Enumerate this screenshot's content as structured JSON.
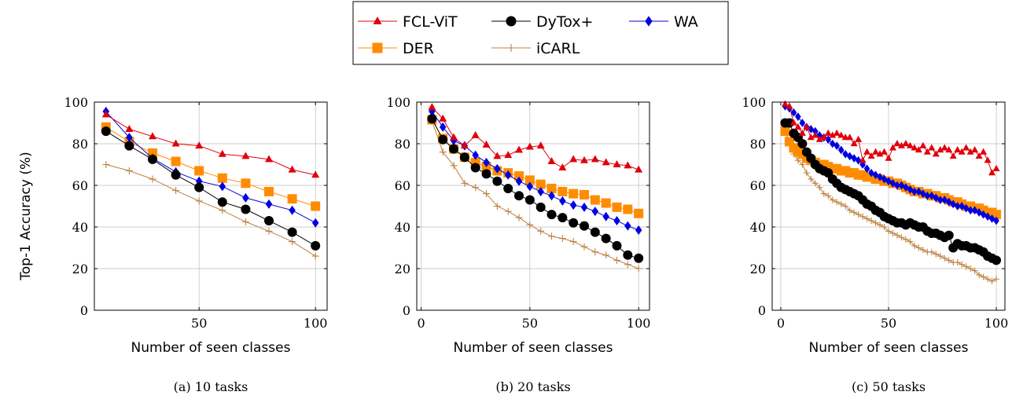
{
  "legend": {
    "placement": "top-center",
    "columns": 3,
    "entries": [
      "FCL-ViT",
      "DyTox+",
      "WA",
      "DER",
      "iCARL"
    ]
  },
  "series_styles": [
    {
      "name": "FCL-ViT",
      "color": "#e0000c",
      "marker": "triangle"
    },
    {
      "name": "DyTox+",
      "color": "#000000",
      "marker": "circle"
    },
    {
      "name": "WA",
      "color": "#0000e0",
      "marker": "diamond"
    },
    {
      "name": "DER",
      "color": "#ff8c00",
      "marker": "square"
    },
    {
      "name": "iCARL",
      "color": "#bf8040",
      "marker": "plus"
    }
  ],
  "chart_data": [
    {
      "type": "line",
      "caption": "(a) 10 tasks",
      "xlabel": "Number of seen classes",
      "ylabel": "Top-1 Accuracy (%)",
      "xlim": [
        5,
        105
      ],
      "ylim": [
        0,
        100
      ],
      "xticks": [
        50,
        100
      ],
      "yticks": [
        0,
        20,
        40,
        60,
        80,
        100
      ],
      "grid": true,
      "x": [
        10,
        20,
        30,
        40,
        50,
        60,
        70,
        80,
        90,
        100
      ],
      "series": [
        {
          "name": "FCL-ViT",
          "values": [
            94,
            87,
            83.5,
            80,
            79,
            75,
            74,
            72.5,
            67.5,
            65
          ]
        },
        {
          "name": "DyTox+",
          "values": [
            86,
            79,
            72.5,
            65,
            59,
            52,
            48.5,
            43,
            37.5,
            31
          ]
        },
        {
          "name": "WA",
          "values": [
            95.5,
            83,
            73,
            66.5,
            62,
            59.5,
            54,
            51,
            48,
            42
          ]
        },
        {
          "name": "DER",
          "values": [
            88,
            81,
            75.5,
            71.5,
            67,
            63.5,
            61,
            57,
            53.5,
            50
          ]
        },
        {
          "name": "iCARL",
          "values": [
            70,
            67,
            63,
            57.5,
            52.5,
            48,
            42.5,
            38,
            33,
            26
          ]
        }
      ]
    },
    {
      "type": "line",
      "caption": "(b) 20 tasks",
      "xlabel": "Number of seen classes",
      "ylabel": "",
      "xlim": [
        -2,
        105
      ],
      "ylim": [
        0,
        100
      ],
      "xticks": [
        0,
        50,
        100
      ],
      "yticks": [
        0,
        20,
        40,
        60,
        80,
        100
      ],
      "grid": true,
      "x": [
        5,
        10,
        15,
        20,
        25,
        30,
        35,
        40,
        45,
        50,
        55,
        60,
        65,
        70,
        75,
        80,
        85,
        90,
        95,
        100
      ],
      "series": [
        {
          "name": "FCL-ViT",
          "values": [
            97.5,
            92,
            83,
            79,
            84,
            79.5,
            74,
            74.5,
            77,
            78.5,
            79,
            71.5,
            68.5,
            72.5,
            72,
            72.5,
            71,
            70,
            69.5,
            67.5
          ]
        },
        {
          "name": "DyTox+",
          "values": [
            92,
            82,
            77.5,
            73.5,
            68.5,
            65.5,
            62,
            58.5,
            55,
            53,
            49.5,
            46,
            44.5,
            42,
            40.5,
            37.5,
            34.5,
            31,
            26.5,
            25
          ]
        },
        {
          "name": "WA",
          "values": [
            95.5,
            88,
            81.5,
            79,
            74.5,
            71,
            68,
            65,
            62,
            59.5,
            57,
            55,
            52.5,
            50.5,
            49.5,
            47.5,
            45,
            43,
            40.5,
            38.5
          ]
        },
        {
          "name": "DER",
          "values": [
            91.5,
            82.5,
            77.5,
            73.5,
            71,
            69,
            67,
            66,
            64.5,
            62.5,
            60.5,
            58.5,
            57,
            56,
            55.5,
            53,
            51.5,
            49.5,
            48.5,
            46.5
          ]
        },
        {
          "name": "iCARL",
          "values": [
            91,
            76,
            69.5,
            61,
            59,
            56,
            50,
            47.5,
            44.5,
            41,
            38,
            35.5,
            34.5,
            33,
            30.5,
            28,
            26.5,
            24,
            22,
            20
          ]
        }
      ]
    },
    {
      "type": "line",
      "caption": "(c) 50 tasks",
      "xlabel": "Number of seen classes",
      "ylabel": "",
      "xlim": [
        -4,
        104
      ],
      "ylim": [
        0,
        100
      ],
      "xticks": [
        0,
        50,
        100
      ],
      "yticks": [
        0,
        20,
        40,
        60,
        80,
        100
      ],
      "grid": true,
      "x": [
        2,
        4,
        6,
        8,
        10,
        12,
        14,
        16,
        18,
        20,
        22,
        24,
        26,
        28,
        30,
        32,
        34,
        36,
        38,
        40,
        42,
        44,
        46,
        48,
        50,
        52,
        54,
        56,
        58,
        60,
        62,
        64,
        66,
        68,
        70,
        72,
        74,
        76,
        78,
        80,
        82,
        84,
        86,
        88,
        90,
        92,
        94,
        96,
        98,
        100
      ],
      "series": [
        {
          "name": "FCL-ViT",
          "values": [
            99,
            98,
            90,
            88,
            85,
            88,
            83,
            84,
            82,
            83,
            85,
            84,
            85,
            84,
            83,
            83,
            80,
            82,
            72,
            76,
            74,
            76,
            75,
            76,
            73,
            78,
            80,
            79,
            80,
            79,
            78,
            77,
            79,
            76,
            78,
            75,
            77,
            78,
            77,
            74,
            77,
            76,
            78,
            76,
            77,
            74,
            76,
            72,
            66,
            68
          ]
        },
        {
          "name": "DyTox+",
          "values": [
            90,
            90,
            85,
            83,
            80,
            76,
            73,
            70,
            68,
            67,
            66,
            63,
            61,
            59,
            58,
            57,
            56,
            55,
            53,
            51,
            50,
            48,
            47,
            45,
            44,
            43,
            42,
            42,
            41,
            42,
            41,
            40,
            40,
            38,
            37,
            37,
            36,
            35,
            36,
            30,
            32,
            31,
            31,
            30,
            30,
            29,
            28,
            26,
            25,
            24
          ]
        },
        {
          "name": "WA",
          "values": [
            98,
            97,
            95,
            93,
            90,
            88,
            87,
            86,
            84,
            83,
            82,
            80,
            79,
            77,
            75,
            74,
            73,
            72,
            70,
            68,
            66,
            65,
            64,
            63,
            62,
            61,
            60,
            60,
            59,
            58,
            57,
            57,
            56,
            55,
            55,
            54,
            53,
            53,
            52,
            51,
            50,
            50,
            49,
            48,
            48,
            47,
            46,
            45,
            44,
            43
          ]
        },
        {
          "name": "DER",
          "values": [
            86,
            81,
            78,
            76,
            75,
            73,
            72,
            71,
            70,
            70,
            69,
            68,
            68,
            67,
            67,
            66,
            66,
            65,
            65,
            64,
            64,
            63,
            63,
            62,
            62,
            61,
            61,
            60,
            59,
            58,
            57,
            57,
            56,
            56,
            55,
            55,
            54,
            54,
            53,
            52,
            52,
            51,
            50,
            50,
            49,
            49,
            48,
            47,
            47,
            46
          ]
        },
        {
          "name": "iCARL",
          "values": [
            86,
            80,
            75,
            72,
            70,
            66,
            63,
            61,
            59,
            56,
            55,
            53,
            52,
            51,
            50,
            48,
            47,
            46,
            45,
            44,
            43,
            42,
            41,
            40,
            38,
            37,
            36,
            35,
            34,
            33,
            31,
            30,
            29,
            28,
            28,
            27,
            26,
            25,
            24,
            23,
            23,
            22,
            21,
            20,
            19,
            17,
            16,
            15,
            14,
            15
          ]
        }
      ]
    }
  ]
}
